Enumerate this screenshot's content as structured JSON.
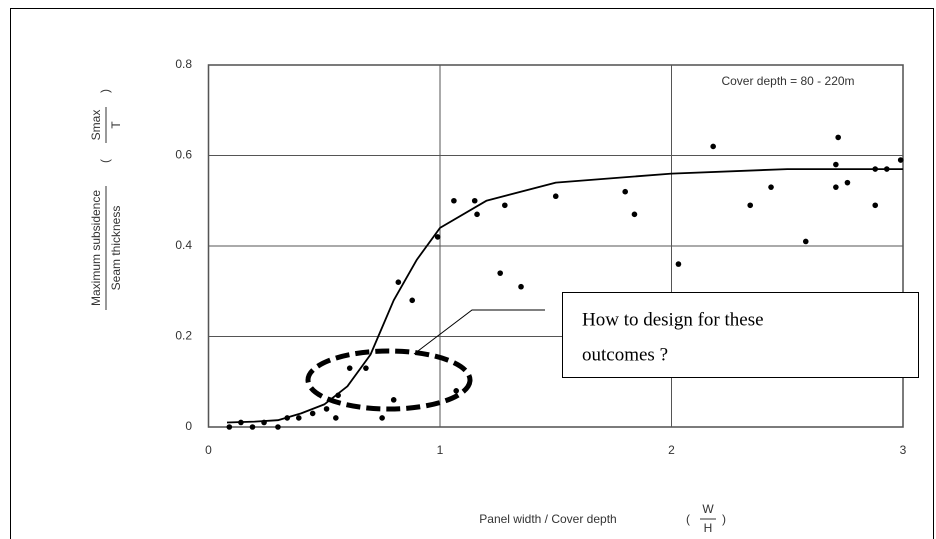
{
  "chart_data": {
    "type": "scatter",
    "annotations": {
      "cover_depth": "Cover depth = 80 - 220m",
      "callout": [
        "How to design for these",
        "outcomes ?"
      ]
    },
    "y_label": {
      "numerator": "Maximum subsidence",
      "denominator": "Seam thickness",
      "symbol_top": "Smax",
      "symbol_bottom": "T"
    },
    "x_label": {
      "text": "Panel width / Cover depth",
      "symbol_top": "W",
      "symbol_bottom": "H"
    },
    "xlim": [
      0,
      3
    ],
    "xticks": [
      0,
      1,
      2,
      3
    ],
    "ylim": [
      0,
      0.8
    ],
    "yticks": [
      0,
      0.2,
      0.4,
      0.6,
      0.8
    ],
    "grid": true,
    "series": [
      {
        "type": "scatter",
        "color": "#000000",
        "x": [
          0.09,
          0.14,
          0.19,
          0.24,
          0.3,
          0.34,
          0.39,
          0.45,
          0.51,
          0.55,
          0.56,
          0.61,
          0.68,
          0.75,
          0.8,
          0.82,
          0.88,
          0.99,
          1.06,
          1.15,
          1.16,
          1.26,
          1.28,
          1.35,
          1.5,
          1.8,
          1.84,
          2.03,
          2.18,
          2.34,
          2.43,
          2.58,
          2.72,
          2.71,
          2.71,
          2.76,
          2.88,
          2.88,
          2.93,
          2.99,
          1.07
        ],
        "values": [
          0.0,
          0.01,
          0.0,
          0.01,
          0.0,
          0.02,
          0.02,
          0.03,
          0.04,
          0.02,
          0.07,
          0.13,
          0.13,
          0.02,
          0.06,
          0.32,
          0.28,
          0.42,
          0.5,
          0.5,
          0.47,
          0.34,
          0.49,
          0.31,
          0.51,
          0.52,
          0.47,
          0.36,
          0.62,
          0.49,
          0.53,
          0.41,
          0.64,
          0.58,
          0.53,
          0.54,
          0.49,
          0.57,
          0.57,
          0.59,
          0.08
        ]
      },
      {
        "type": "line",
        "color": "#000000",
        "x": [
          0.08,
          0.2,
          0.3,
          0.4,
          0.5,
          0.6,
          0.7,
          0.8,
          0.9,
          1.0,
          1.2,
          1.5,
          2.0,
          2.5,
          3.0
        ],
        "values": [
          0.01,
          0.012,
          0.015,
          0.03,
          0.05,
          0.09,
          0.16,
          0.28,
          0.37,
          0.44,
          0.5,
          0.54,
          0.56,
          0.57,
          0.57
        ]
      }
    ]
  }
}
